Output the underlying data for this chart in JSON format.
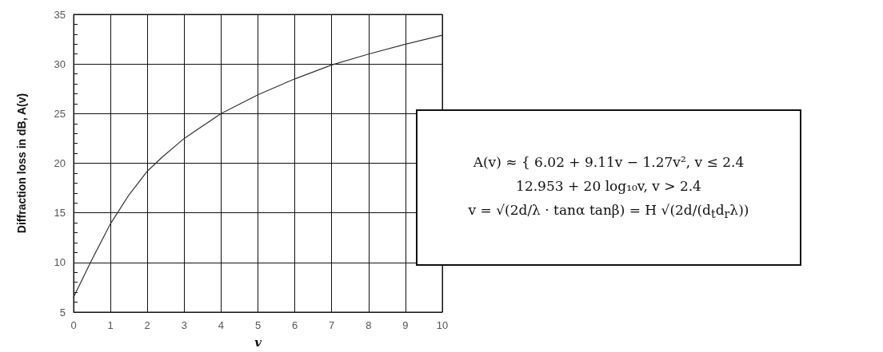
{
  "chart_data": {
    "type": "line",
    "xlabel": "v",
    "ylabel": "Diffraction loss in dB, A(v)",
    "x": [
      0,
      0.5,
      1,
      1.5,
      2,
      2.4,
      3,
      4,
      5,
      6,
      7,
      8,
      9,
      10
    ],
    "series": [
      {
        "color": "#333333",
        "values": [
          6.5,
          10.3,
          13.9,
          16.8,
          19.2,
          20.6,
          22.5,
          25.0,
          26.9,
          28.5,
          29.9,
          31.0,
          32.0,
          32.9
        ]
      }
    ],
    "xlim": [
      0,
      10
    ],
    "xticks": [
      0,
      1,
      2,
      3,
      4,
      5,
      6,
      7,
      8,
      9,
      10
    ],
    "ylim": [
      5,
      35
    ],
    "yticks": [
      5,
      10,
      15,
      20,
      25,
      30,
      35
    ],
    "grid": true,
    "marker": "none",
    "line_style": "solid",
    "annotations": [
      "A(v) ≈ { 6.02 + 9.11v − 1.27v², v ≤ 2.4",
      "12.953 + 20 log₁₀v, v > 2.4",
      "v = √(2d/λ · tanα tanβ) = H √(2d/(d$_{t}$d$_{r}$λ))"
    ]
  }
}
